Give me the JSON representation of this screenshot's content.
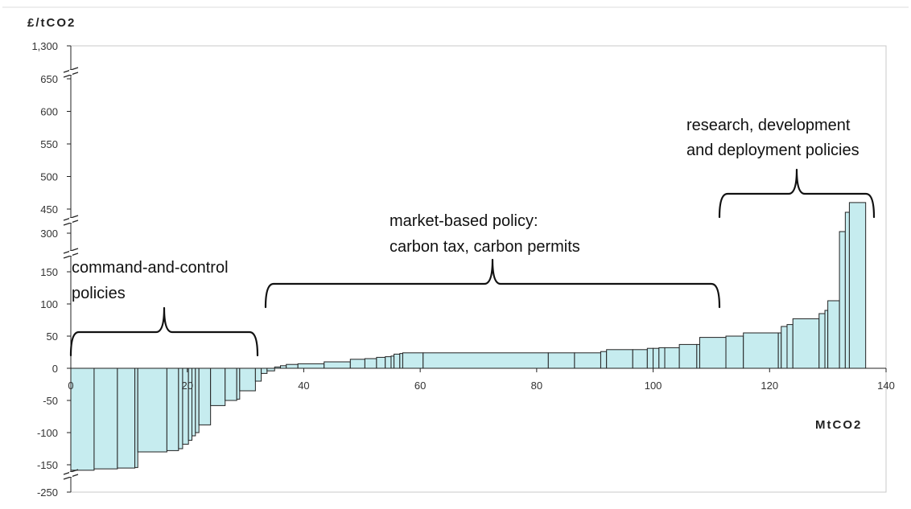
{
  "chart_data": {
    "type": "bar",
    "subtype": "marginal-abatement-cost-curve",
    "ylabel": "£/tCO2",
    "xlabel": "MtCO2",
    "xlim": [
      0,
      140
    ],
    "x_ticks": [
      "0",
      "20",
      "40",
      "60",
      "80",
      "100",
      "120",
      "140"
    ],
    "y_ticks": [
      "-250",
      "-150",
      "-100",
      "-50",
      "0",
      "50",
      "100",
      "150",
      "300",
      "450",
      "500",
      "550",
      "600",
      "650",
      "1,300"
    ],
    "y_axis_breaks": [
      "between -150 and -250",
      "between 150 and 300",
      "between 300 and 450",
      "between 650 and 1,300"
    ],
    "grid": false,
    "bars": [
      {
        "x_start": 0,
        "x_end": 4,
        "value": -170
      },
      {
        "x_start": 4,
        "x_end": 8,
        "value": -165
      },
      {
        "x_start": 8,
        "x_end": 11,
        "value": -162
      },
      {
        "x_start": 11,
        "x_end": 11.5,
        "value": -160
      },
      {
        "x_start": 11.5,
        "x_end": 16.5,
        "value": -130
      },
      {
        "x_start": 16.5,
        "x_end": 18.5,
        "value": -128
      },
      {
        "x_start": 18.5,
        "x_end": 19.2,
        "value": -125
      },
      {
        "x_start": 19.2,
        "x_end": 20.2,
        "value": -118
      },
      {
        "x_start": 20.2,
        "x_end": 20.8,
        "value": -112
      },
      {
        "x_start": 20.8,
        "x_end": 21.4,
        "value": -105
      },
      {
        "x_start": 21.4,
        "x_end": 22,
        "value": -100
      },
      {
        "x_start": 22,
        "x_end": 24,
        "value": -88
      },
      {
        "x_start": 24,
        "x_end": 26.5,
        "value": -58
      },
      {
        "x_start": 26.5,
        "x_end": 28.5,
        "value": -50
      },
      {
        "x_start": 28.5,
        "x_end": 29,
        "value": -48
      },
      {
        "x_start": 29,
        "x_end": 31.7,
        "value": -35
      },
      {
        "x_start": 31.7,
        "x_end": 32.7,
        "value": -20
      },
      {
        "x_start": 32.7,
        "x_end": 33.7,
        "value": -8
      },
      {
        "x_start": 33.7,
        "x_end": 35,
        "value": -4
      },
      {
        "x_start": 35,
        "x_end": 36,
        "value": 2
      },
      {
        "x_start": 36,
        "x_end": 37,
        "value": 4
      },
      {
        "x_start": 37,
        "x_end": 39,
        "value": 6
      },
      {
        "x_start": 39,
        "x_end": 43.5,
        "value": 7
      },
      {
        "x_start": 43.5,
        "x_end": 48,
        "value": 10
      },
      {
        "x_start": 48,
        "x_end": 50.5,
        "value": 14
      },
      {
        "x_start": 50.5,
        "x_end": 52.5,
        "value": 15
      },
      {
        "x_start": 52.5,
        "x_end": 54,
        "value": 17
      },
      {
        "x_start": 54,
        "x_end": 55,
        "value": 18
      },
      {
        "x_start": 55,
        "x_end": 55.5,
        "value": 19
      },
      {
        "x_start": 55.5,
        "x_end": 56.5,
        "value": 22
      },
      {
        "x_start": 56.5,
        "x_end": 57,
        "value": 23
      },
      {
        "x_start": 57,
        "x_end": 60.5,
        "value": 24
      },
      {
        "x_start": 60.5,
        "x_end": 82,
        "value": 24
      },
      {
        "x_start": 82,
        "x_end": 86.5,
        "value": 24
      },
      {
        "x_start": 86.5,
        "x_end": 91,
        "value": 24
      },
      {
        "x_start": 91,
        "x_end": 92,
        "value": 26
      },
      {
        "x_start": 92,
        "x_end": 96.5,
        "value": 29
      },
      {
        "x_start": 96.5,
        "x_end": 99,
        "value": 29
      },
      {
        "x_start": 99,
        "x_end": 100,
        "value": 31
      },
      {
        "x_start": 100,
        "x_end": 101,
        "value": 31
      },
      {
        "x_start": 101,
        "x_end": 102,
        "value": 32
      },
      {
        "x_start": 102,
        "x_end": 104.5,
        "value": 32
      },
      {
        "x_start": 104.5,
        "x_end": 107.5,
        "value": 37
      },
      {
        "x_start": 107.5,
        "x_end": 108,
        "value": 37
      },
      {
        "x_start": 108,
        "x_end": 112.5,
        "value": 48
      },
      {
        "x_start": 112.5,
        "x_end": 115.5,
        "value": 50
      },
      {
        "x_start": 115.5,
        "x_end": 121.5,
        "value": 55
      },
      {
        "x_start": 121.5,
        "x_end": 122,
        "value": 55
      },
      {
        "x_start": 122,
        "x_end": 123,
        "value": 65
      },
      {
        "x_start": 123,
        "x_end": 124,
        "value": 68
      },
      {
        "x_start": 124,
        "x_end": 128.5,
        "value": 77
      },
      {
        "x_start": 128.5,
        "x_end": 129.5,
        "value": 85
      },
      {
        "x_start": 129.5,
        "x_end": 130,
        "value": 90
      },
      {
        "x_start": 130,
        "x_end": 132,
        "value": 105
      },
      {
        "x_start": 132,
        "x_end": 133,
        "value": 310
      },
      {
        "x_start": 133,
        "x_end": 133.7,
        "value": 430
      },
      {
        "x_start": 133.7,
        "x_end": 136.5,
        "value": 460
      }
    ],
    "annotations": [
      {
        "text_lines": [
          "command-and-control",
          "policies"
        ],
        "brace_span": [
          0,
          32.5
        ]
      },
      {
        "text_lines": [
          "market-based policy:",
          "carbon tax, carbon permits"
        ],
        "brace_span": [
          33.5,
          111
        ]
      },
      {
        "text_lines": [
          "research, development",
          "and deployment policies"
        ],
        "brace_span": [
          111,
          136.5
        ]
      }
    ]
  }
}
